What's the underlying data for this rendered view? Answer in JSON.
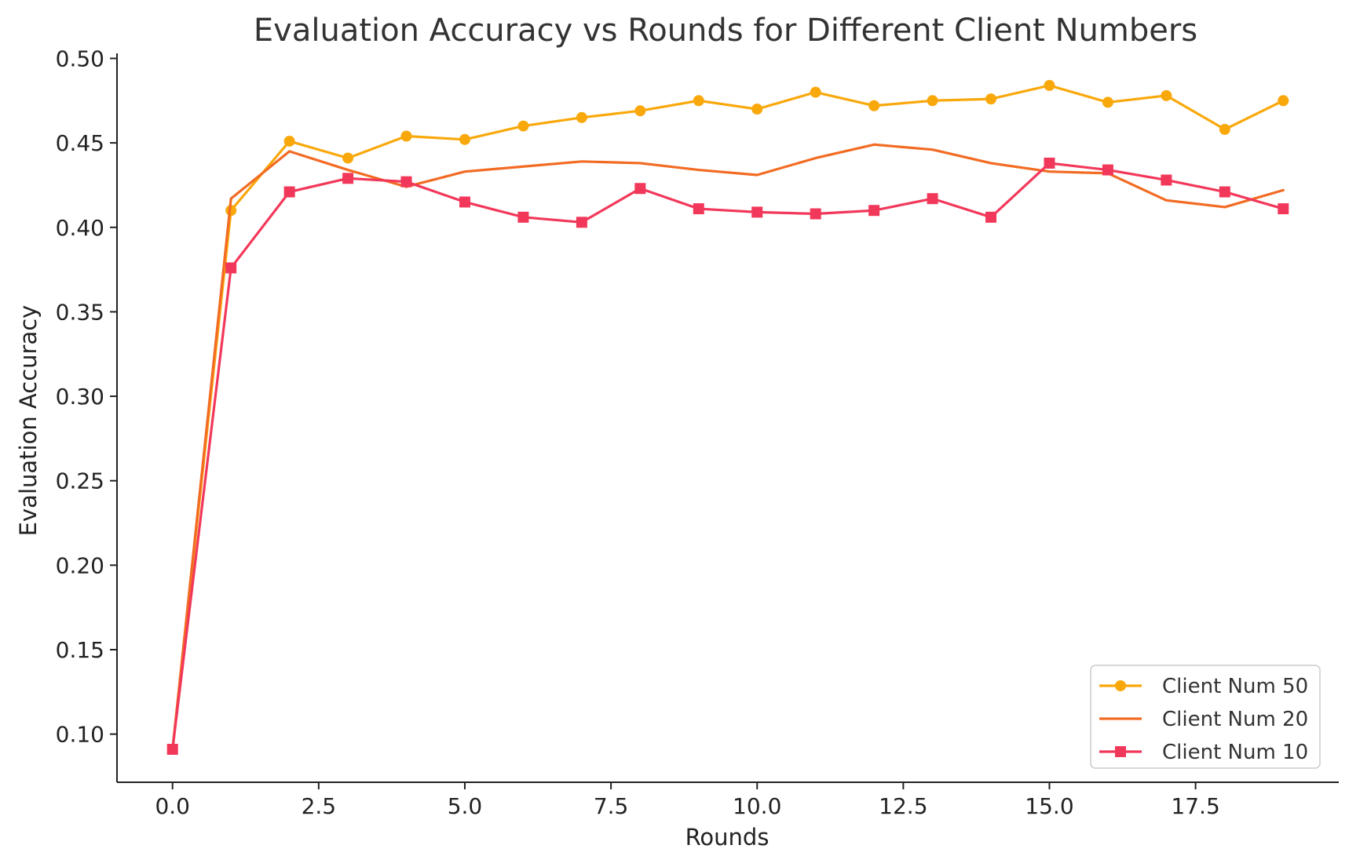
{
  "chart_data": {
    "type": "line",
    "title": "Evaluation Accuracy vs Rounds for Different Client Numbers",
    "xlabel": "Rounds",
    "ylabel": "Evaluation Accuracy",
    "xlim": [
      -0.95,
      19.95
    ],
    "ylim": [
      0.0715,
      0.503
    ],
    "x_ticks": [
      0.0,
      2.5,
      5.0,
      7.5,
      10.0,
      12.5,
      15.0,
      17.5
    ],
    "x_tick_labels": [
      "0.0",
      "2.5",
      "5.0",
      "7.5",
      "10.0",
      "12.5",
      "15.0",
      "17.5"
    ],
    "y_ticks": [
      0.1,
      0.15,
      0.2,
      0.25,
      0.3,
      0.35,
      0.4,
      0.45,
      0.5
    ],
    "y_tick_labels": [
      "0.10",
      "0.15",
      "0.20",
      "0.25",
      "0.30",
      "0.35",
      "0.40",
      "0.45",
      "0.50"
    ],
    "grid": false,
    "legend_position": "lower-right",
    "x": [
      0,
      1,
      2,
      3,
      4,
      5,
      6,
      7,
      8,
      9,
      10,
      11,
      12,
      13,
      14,
      15,
      16,
      17,
      18,
      19
    ],
    "series": [
      {
        "name": "Client Num 50",
        "color": "#F9A80C",
        "marker": "circle",
        "values": [
          0.091,
          0.41,
          0.451,
          0.441,
          0.454,
          0.452,
          0.46,
          0.465,
          0.469,
          0.475,
          0.47,
          0.48,
          0.472,
          0.475,
          0.476,
          0.484,
          0.474,
          0.478,
          0.458,
          0.475
        ]
      },
      {
        "name": "Client Num 20",
        "color": "#F26B23",
        "marker": "none",
        "values": [
          0.091,
          0.417,
          0.445,
          0.434,
          0.424,
          0.433,
          0.436,
          0.439,
          0.438,
          0.434,
          0.431,
          0.441,
          0.449,
          0.446,
          0.438,
          0.433,
          0.432,
          0.416,
          0.412,
          0.422
        ]
      },
      {
        "name": "Client Num 10",
        "color": "#F2385A",
        "marker": "square",
        "values": [
          0.091,
          0.376,
          0.421,
          0.429,
          0.427,
          0.415,
          0.406,
          0.403,
          0.423,
          0.411,
          0.409,
          0.408,
          0.41,
          0.417,
          0.406,
          0.438,
          0.434,
          0.428,
          0.421,
          0.411
        ]
      }
    ]
  }
}
